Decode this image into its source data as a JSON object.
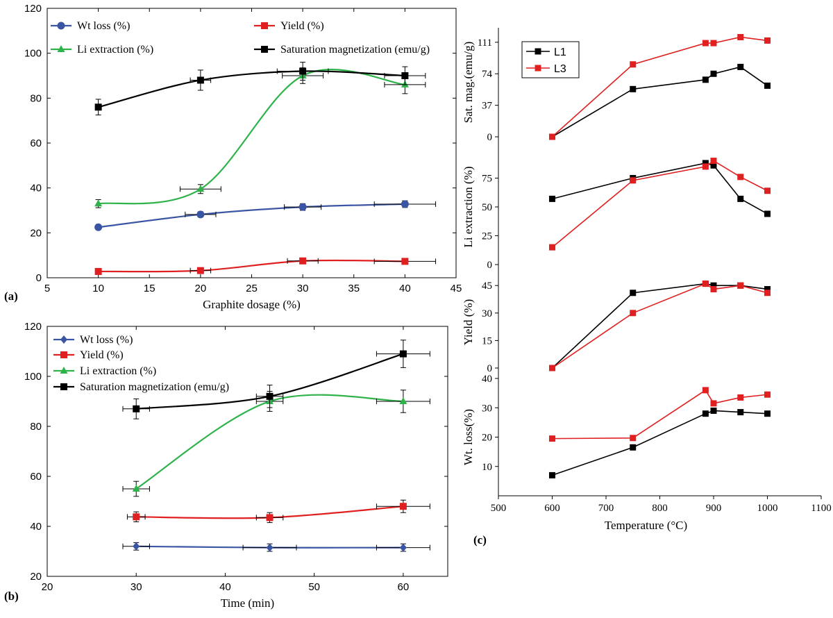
{
  "chart_data": [
    {
      "id": "a",
      "type": "line",
      "panel_label": "(a)",
      "xlabel": "Graphite dosage (%)",
      "ylabel": "",
      "xlim": [
        5,
        45
      ],
      "ylim": [
        0,
        120
      ],
      "xticks": [
        5,
        10,
        15,
        20,
        25,
        30,
        35,
        40,
        45
      ],
      "yticks": [
        0,
        20,
        40,
        60,
        80,
        100,
        120
      ],
      "x": [
        10,
        20,
        30,
        40
      ],
      "series": [
        {
          "name": "Wt loss (%)",
          "color": "#3a55a4",
          "marker": "circle",
          "values": [
            22.5,
            28.2,
            31.5,
            32.8
          ],
          "yerr": [
            0.8,
            1.2,
            1.5,
            1.5
          ],
          "xerr": [
            0,
            1.5,
            1.8,
            3
          ]
        },
        {
          "name": "Yield (%)",
          "color": "#e02020",
          "marker": "square",
          "values": [
            2.8,
            3.2,
            7.5,
            7.3
          ],
          "yerr": [
            0.5,
            0.5,
            0.8,
            0.8
          ],
          "xerr": [
            0,
            1.0,
            1.5,
            3
          ]
        },
        {
          "name": "Li extraction (%)",
          "color": "#2db34a",
          "marker": "triangle",
          "values": [
            33,
            39.5,
            90,
            86
          ],
          "yerr": [
            1.8,
            2,
            3.5,
            4
          ],
          "xerr": [
            0,
            2,
            2,
            2
          ]
        },
        {
          "name": "Saturation magnetization (emu/g)",
          "color": "#000000",
          "marker": "square",
          "values": [
            76,
            88,
            92,
            90
          ],
          "yerr": [
            3.5,
            4.5,
            4,
            4
          ],
          "xerr": [
            0,
            1,
            2.5,
            2
          ]
        }
      ],
      "legend_columns": 2
    },
    {
      "id": "b",
      "type": "line",
      "panel_label": "(b)",
      "xlabel": "Time (min)",
      "ylabel": "",
      "xlim": [
        20,
        65
      ],
      "ylim": [
        20,
        120
      ],
      "xticks": [
        20,
        30,
        40,
        50,
        60
      ],
      "yticks": [
        20,
        40,
        60,
        80,
        100,
        120
      ],
      "x": [
        30,
        45,
        60
      ],
      "series": [
        {
          "name": "Wt loss (%)",
          "color": "#3a55a4",
          "marker": "diamond",
          "values": [
            32,
            31.5,
            31.5
          ],
          "yerr": [
            1.5,
            1.5,
            1.5
          ],
          "xerr": [
            1.5,
            3,
            3
          ]
        },
        {
          "name": "Yield (%)",
          "color": "#e02020",
          "marker": "square",
          "values": [
            43.8,
            43.5,
            48
          ],
          "yerr": [
            2,
            2,
            2.5
          ],
          "xerr": [
            1,
            1.5,
            3
          ]
        },
        {
          "name": "Li extraction (%)",
          "color": "#2db34a",
          "marker": "triangle",
          "values": [
            55,
            90,
            90
          ],
          "yerr": [
            3,
            4,
            4.5
          ],
          "xerr": [
            1.5,
            1.5,
            3
          ]
        },
        {
          "name": "Saturation magnetization (emu/g)",
          "color": "#000000",
          "marker": "square",
          "values": [
            87,
            92,
            109
          ],
          "yerr": [
            4,
            4.5,
            5.5
          ],
          "xerr": [
            1.5,
            1.5,
            3
          ]
        }
      ],
      "legend_columns": 1
    },
    {
      "id": "c",
      "type": "line",
      "panel_label": "(c)",
      "xlabel": "Temperature (°C)",
      "xlim": [
        500,
        1100
      ],
      "xticks": [
        500,
        600,
        700,
        800,
        900,
        1000,
        1100
      ],
      "legend": [
        "L1",
        "L3"
      ],
      "legend_colors": [
        "#000000",
        "#e02020"
      ],
      "subplots": [
        {
          "ylabel": "Sat. mag.(emu/g)",
          "ylim": [
            0,
            128
          ],
          "yticks": [
            0,
            37,
            74,
            111
          ],
          "series": [
            {
              "name": "L1",
              "color": "#000000",
              "x": [
                600,
                750,
                885,
                900,
                950,
                1000
              ],
              "values": [
                0,
                56,
                67,
                74,
                82,
                60
              ]
            },
            {
              "name": "L3",
              "color": "#e02020",
              "x": [
                600,
                750,
                885,
                900,
                950,
                1000
              ],
              "values": [
                0,
                85,
                110,
                110,
                117,
                113
              ]
            }
          ]
        },
        {
          "ylabel": "Li extraction (%)",
          "ylim": [
            0,
            100
          ],
          "yticks": [
            0,
            25,
            50,
            75
          ],
          "series": [
            {
              "name": "L1",
              "color": "#000000",
              "x": [
                600,
                750,
                885,
                900,
                950,
                1000
              ],
              "values": [
                57,
                75,
                88,
                86,
                57,
                44
              ]
            },
            {
              "name": "L3",
              "color": "#e02020",
              "x": [
                600,
                750,
                885,
                900,
                950,
                1000
              ],
              "values": [
                15,
                73,
                85,
                90,
                76,
                64
              ]
            }
          ]
        },
        {
          "ylabel": "Yield (%)",
          "ylim": [
            0,
            50
          ],
          "yticks": [
            0,
            15,
            30,
            45
          ],
          "series": [
            {
              "name": "L1",
              "color": "#000000",
              "x": [
                600,
                750,
                885,
                900,
                950,
                1000
              ],
              "values": [
                0,
                41,
                46,
                45,
                45,
                43
              ]
            },
            {
              "name": "L3",
              "color": "#e02020",
              "x": [
                600,
                750,
                885,
                900,
                950,
                1000
              ],
              "values": [
                0,
                30,
                46,
                43,
                45,
                41
              ]
            }
          ]
        },
        {
          "ylabel": "Wt. loss(%)",
          "ylim": [
            0,
            40
          ],
          "yticks": [
            10,
            20,
            30,
            40
          ],
          "series": [
            {
              "name": "L1",
              "color": "#000000",
              "x": [
                600,
                750,
                885,
                900,
                950,
                1000
              ],
              "values": [
                7,
                16.5,
                28,
                29,
                28.5,
                28
              ]
            },
            {
              "name": "L3",
              "color": "#e02020",
              "x": [
                600,
                750,
                885,
                900,
                950,
                1000
              ],
              "values": [
                19.5,
                19.7,
                36,
                31.5,
                33.5,
                34.5
              ]
            }
          ]
        }
      ]
    }
  ]
}
